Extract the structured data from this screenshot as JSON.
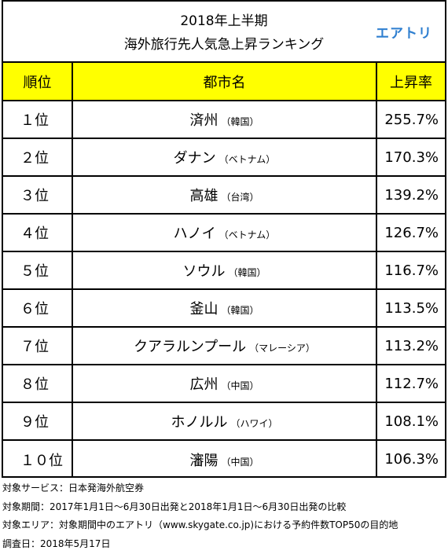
{
  "header": {
    "title_line1": "2018年上半期",
    "title_line2": "海外旅行先人気急上昇ランキング",
    "logo": "エアトリ"
  },
  "table": {
    "columns": [
      "順位",
      "都市名",
      "上昇率"
    ],
    "rows": [
      {
        "rank": "１位",
        "city": "済州",
        "country": "（韓国）",
        "rate": "255.7%"
      },
      {
        "rank": "２位",
        "city": "ダナン",
        "country": "（ベトナム）",
        "rate": "170.3%"
      },
      {
        "rank": "３位",
        "city": "高雄",
        "country": "（台湾）",
        "rate": "139.2%"
      },
      {
        "rank": "４位",
        "city": "ハノイ",
        "country": "（ベトナム）",
        "rate": "126.7%"
      },
      {
        "rank": "５位",
        "city": "ソウル",
        "country": "（韓国）",
        "rate": "116.7%"
      },
      {
        "rank": "６位",
        "city": "釜山",
        "country": "（韓国）",
        "rate": "113.5%"
      },
      {
        "rank": "７位",
        "city": "クアラルンプール",
        "country": "（マレーシア）",
        "rate": "113.2%"
      },
      {
        "rank": "８位",
        "city": "広州",
        "country": "（中国）",
        "rate": "112.7%"
      },
      {
        "rank": "９位",
        "city": "ホノルル",
        "country": "（ハワイ）",
        "rate": "108.1%"
      },
      {
        "rank": "１０位",
        "city": "瀋陽",
        "country": "（中国）",
        "rate": "106.3%"
      }
    ]
  },
  "notes": [
    "対象サービス：日本発海外航空券",
    "対象期間：2017年1月1日～6月30日出発と2018年1月1日～6月30日出発の比較",
    "対象エリア：対象期間中のエアトリ（www.skygate.co.jp)における予約件数TOP50の目的地",
    "調査日：2018年5月17日"
  ],
  "colors": {
    "header_fill": "#ffff00",
    "logo": "#2f7fd0",
    "border": "#000000"
  }
}
